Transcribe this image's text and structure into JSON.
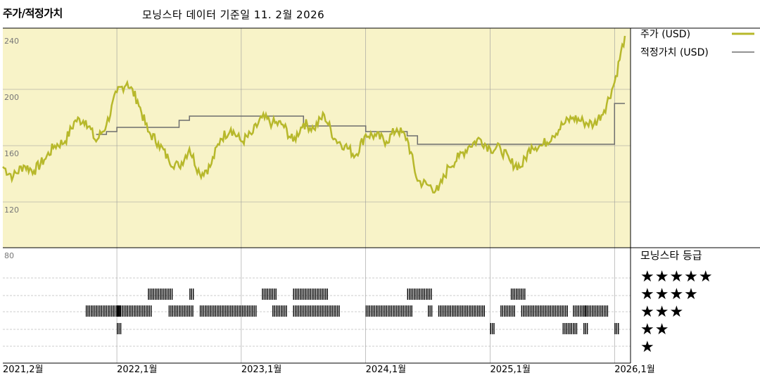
{
  "title": "주가/적정가치",
  "subtitle": "모닝스타 데이터 기준일 11. 2월 2026",
  "colors": {
    "price": "#b7b82b",
    "fair_value": "#6e6e6e",
    "price_panel_bg": "#f8f3c8",
    "grid": "#999999",
    "rating_bar": "#000000"
  },
  "chart_data": {
    "type": "line",
    "ylim": [
      80,
      240
    ],
    "yticks": [
      "240",
      "200",
      "160",
      "120",
      "80"
    ],
    "ytick_values": [
      240,
      200,
      160,
      120,
      80
    ],
    "xticks": [
      "2021,2월",
      "2022,1월",
      "2023,1월",
      "2024,1월",
      "2025,1월",
      "2026,1월"
    ],
    "xtick_dates": [
      "2021-02",
      "2022-01",
      "2023-01",
      "2024-01",
      "2025-01",
      "2026-01"
    ],
    "x_range": [
      "2021-02",
      "2026-02"
    ],
    "legend": {
      "price_label": "주가 (USD)",
      "fair_label": "적정가치 (USD)"
    },
    "series": [
      {
        "name": "주가 (USD)",
        "points": [
          [
            "2021-02",
            145
          ],
          [
            "2021-03",
            138
          ],
          [
            "2021-04",
            146
          ],
          [
            "2021-05",
            142
          ],
          [
            "2021-06",
            150
          ],
          [
            "2021-07",
            160
          ],
          [
            "2021-08",
            163
          ],
          [
            "2021-09",
            178
          ],
          [
            "2021-10",
            178
          ],
          [
            "2021-11",
            163
          ],
          [
            "2021-12",
            175
          ],
          [
            "2022-01",
            198
          ],
          [
            "2022-02",
            205
          ],
          [
            "2022-03",
            192
          ],
          [
            "2022-04",
            170
          ],
          [
            "2022-05",
            162
          ],
          [
            "2022-06",
            150
          ],
          [
            "2022-07",
            145
          ],
          [
            "2022-08",
            158
          ],
          [
            "2022-09",
            140
          ],
          [
            "2022-10",
            145
          ],
          [
            "2022-11",
            165
          ],
          [
            "2022-12",
            172
          ],
          [
            "2023-01",
            163
          ],
          [
            "2023-02",
            168
          ],
          [
            "2023-03",
            180
          ],
          [
            "2023-04",
            176
          ],
          [
            "2023-05",
            175
          ],
          [
            "2023-06",
            163
          ],
          [
            "2023-07",
            176
          ],
          [
            "2023-08",
            172
          ],
          [
            "2023-09",
            182
          ],
          [
            "2023-10",
            165
          ],
          [
            "2023-11",
            160
          ],
          [
            "2023-12",
            153
          ],
          [
            "2024-01",
            168
          ],
          [
            "2024-02",
            167
          ],
          [
            "2024-03",
            163
          ],
          [
            "2024-04",
            172
          ],
          [
            "2024-05",
            165
          ],
          [
            "2024-06",
            135
          ],
          [
            "2024-07",
            132
          ],
          [
            "2024-08",
            128
          ],
          [
            "2024-09",
            145
          ],
          [
            "2024-10",
            152
          ],
          [
            "2024-11",
            160
          ],
          [
            "2024-12",
            165
          ],
          [
            "2025-01",
            158
          ],
          [
            "2025-02",
            158
          ],
          [
            "2025-03",
            148
          ],
          [
            "2025-04",
            145
          ],
          [
            "2025-05",
            160
          ],
          [
            "2025-06",
            160
          ],
          [
            "2025-07",
            167
          ],
          [
            "2025-08",
            175
          ],
          [
            "2025-09",
            180
          ],
          [
            "2025-10",
            177
          ],
          [
            "2025-11",
            175
          ],
          [
            "2025-12",
            185
          ],
          [
            "2026-01",
            205
          ],
          [
            "2026-02",
            238
          ]
        ]
      },
      {
        "name": "적정가치 (USD)",
        "points": [
          [
            "2021-11",
            168
          ],
          [
            "2021-12",
            170
          ],
          [
            "2022-01",
            173
          ],
          [
            "2022-06",
            173
          ],
          [
            "2022-07",
            178
          ],
          [
            "2022-08",
            181
          ],
          [
            "2023-01",
            181
          ],
          [
            "2023-06",
            181
          ],
          [
            "2023-07",
            174
          ],
          [
            "2024-01",
            170
          ],
          [
            "2024-05",
            167
          ],
          [
            "2024-06",
            161
          ],
          [
            "2025-01",
            161
          ],
          [
            "2025-09",
            161
          ],
          [
            "2025-12",
            161
          ],
          [
            "2026-01",
            190
          ],
          [
            "2026-02",
            190
          ]
        ]
      }
    ],
    "rating_panel": {
      "title": "모닝스타 등급",
      "rows": [
        "★★★★★",
        "★★★★",
        "★★★",
        "★★",
        "★"
      ],
      "segments": [
        {
          "stars": 3,
          "from": "2021-10",
          "to": "2022-01"
        },
        {
          "stars": 2,
          "from": "2022-01",
          "to": "2022-01"
        },
        {
          "stars": 3,
          "from": "2022-01",
          "to": "2022-04"
        },
        {
          "stars": 4,
          "from": "2022-04",
          "to": "2022-06"
        },
        {
          "stars": 3,
          "from": "2022-06",
          "to": "2022-08"
        },
        {
          "stars": 4,
          "from": "2022-08",
          "to": "2022-08"
        },
        {
          "stars": 3,
          "from": "2022-09",
          "to": "2023-02"
        },
        {
          "stars": 4,
          "from": "2023-03",
          "to": "2023-04"
        },
        {
          "stars": 3,
          "from": "2023-04",
          "to": "2023-05"
        },
        {
          "stars": 4,
          "from": "2023-06",
          "to": "2023-09"
        },
        {
          "stars": 3,
          "from": "2023-06",
          "to": "2023-10"
        },
        {
          "stars": 3,
          "from": "2024-01",
          "to": "2024-05"
        },
        {
          "stars": 4,
          "from": "2024-05",
          "to": "2024-07"
        },
        {
          "stars": 3,
          "from": "2024-07",
          "to": "2024-07"
        },
        {
          "stars": 3,
          "from": "2024-08",
          "to": "2024-12"
        },
        {
          "stars": 2,
          "from": "2025-01",
          "to": "2025-01"
        },
        {
          "stars": 3,
          "from": "2025-02",
          "to": "2025-03"
        },
        {
          "stars": 4,
          "from": "2025-03",
          "to": "2025-04"
        },
        {
          "stars": 3,
          "from": "2025-04",
          "to": "2025-08"
        },
        {
          "stars": 2,
          "from": "2025-08",
          "to": "2025-09"
        },
        {
          "stars": 3,
          "from": "2025-09",
          "to": "2025-10"
        },
        {
          "stars": 2,
          "from": "2025-10",
          "to": "2025-10"
        },
        {
          "stars": 3,
          "from": "2025-10",
          "to": "2025-12"
        },
        {
          "stars": 2,
          "from": "2026-01",
          "to": "2026-01"
        }
      ]
    }
  }
}
